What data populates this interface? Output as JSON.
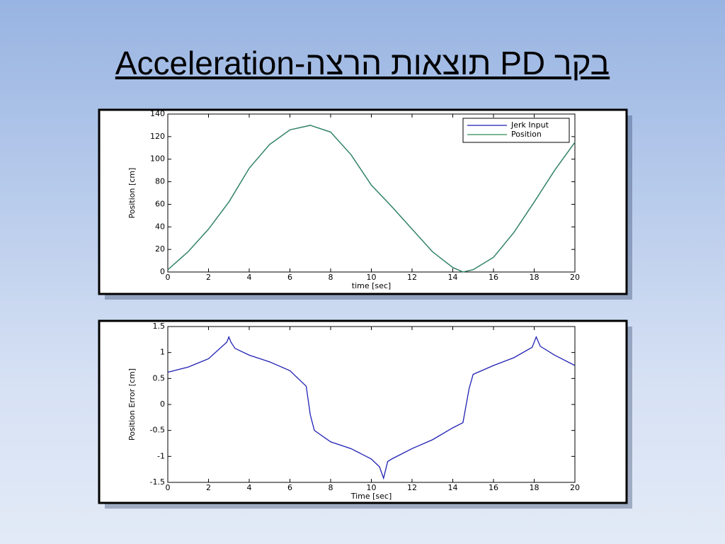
{
  "title": "בקר PD תוצאות הרצה-Acceleration",
  "chart_data": [
    {
      "type": "line",
      "xlabel": "time [sec]",
      "ylabel": "Position [cm]",
      "xlim": [
        0,
        20
      ],
      "ylim": [
        0,
        140
      ],
      "xticks": [
        0,
        2,
        4,
        6,
        8,
        10,
        12,
        14,
        16,
        18,
        20
      ],
      "yticks": [
        0,
        20,
        40,
        60,
        80,
        100,
        120,
        140
      ],
      "legend": "top-right",
      "x": [
        0,
        1,
        2,
        3,
        4,
        5,
        6,
        7,
        8,
        9,
        10,
        11,
        12,
        13,
        14,
        14.5,
        15,
        16,
        17,
        18,
        19,
        20
      ],
      "series": [
        {
          "name": "Jerk Input",
          "color": "#1f1fb4",
          "values": [
            2,
            18,
            38,
            62,
            92,
            113,
            126,
            130,
            124,
            104,
            77,
            58,
            38,
            18,
            4,
            0,
            2,
            13,
            35,
            62,
            90,
            115
          ]
        },
        {
          "name": "Position",
          "color": "#2e8b57",
          "values": [
            2,
            18,
            38,
            62,
            92,
            113,
            126,
            130,
            124,
            104,
            77,
            58,
            38,
            18,
            4,
            0,
            2,
            13,
            35,
            62,
            90,
            115
          ]
        }
      ]
    },
    {
      "type": "line",
      "xlabel": "Time [sec]",
      "ylabel": "Position Error [cm]",
      "xlim": [
        0,
        20
      ],
      "ylim": [
        -1.5,
        1.5
      ],
      "xticks": [
        0,
        2,
        4,
        6,
        8,
        10,
        12,
        14,
        16,
        18,
        20
      ],
      "yticks": [
        -1.5,
        -1,
        -0.5,
        0,
        0.5,
        1,
        1.5
      ],
      "x": [
        0,
        1,
        2,
        2.9,
        3,
        3.1,
        3.3,
        4,
        5,
        6,
        6.8,
        7,
        7.2,
        8,
        9,
        10,
        10.4,
        10.6,
        10.8,
        11,
        12,
        13,
        14,
        14.5,
        14.8,
        15,
        16,
        17,
        17.9,
        18.1,
        18.3,
        19,
        20
      ],
      "series": [
        {
          "color": "#1f1fb4",
          "values": [
            0.62,
            0.72,
            0.88,
            1.2,
            1.3,
            1.2,
            1.08,
            0.95,
            0.82,
            0.65,
            0.35,
            -0.2,
            -0.5,
            -0.72,
            -0.85,
            -1.05,
            -1.2,
            -1.42,
            -1.1,
            -1.05,
            -0.85,
            -0.68,
            -0.45,
            -0.35,
            0.3,
            0.58,
            0.75,
            0.9,
            1.1,
            1.3,
            1.12,
            0.95,
            0.75
          ]
        }
      ]
    }
  ]
}
